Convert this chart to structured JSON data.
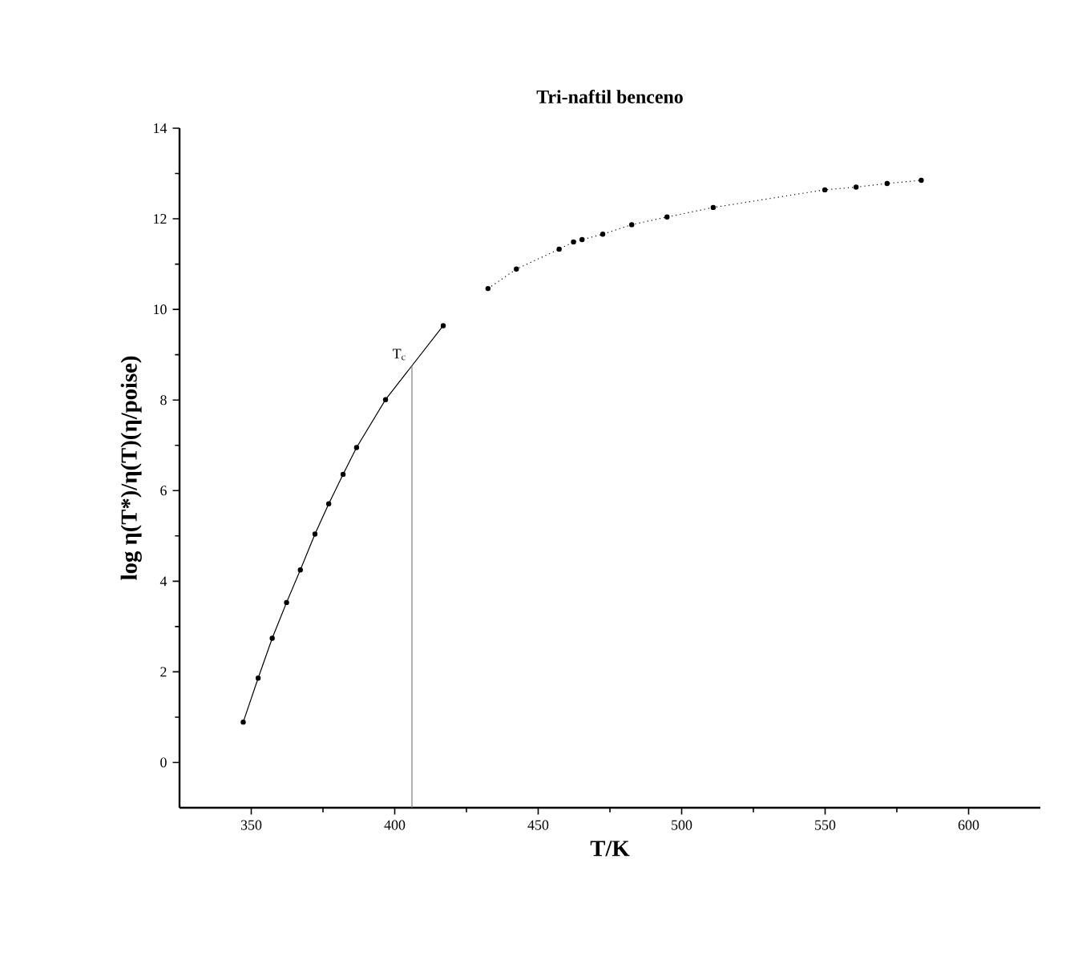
{
  "chart_data": {
    "type": "line",
    "title": "Tri-naftil benceno",
    "xlabel": "T/K",
    "ylabel": "log η(T*)/η(T)(η/poise)",
    "xlim": [
      325,
      625
    ],
    "xticks": [
      350,
      400,
      450,
      500,
      550,
      600
    ],
    "ylim": [
      -1,
      14
    ],
    "yticks": [
      0,
      2,
      4,
      6,
      8,
      10,
      12,
      14
    ],
    "marker": "circle",
    "grid": false,
    "series": [
      {
        "line_style": "solid",
        "color": "#000000",
        "x": [
          347.2,
          352.4,
          357.3,
          362.3,
          367.1,
          372.2,
          377.0,
          382.0,
          386.7,
          396.8,
          416.9
        ],
        "values": [
          0.89,
          1.86,
          2.74,
          3.53,
          4.25,
          5.04,
          5.71,
          6.36,
          6.95,
          8.01,
          9.64
        ]
      },
      {
        "line_style": "dotted",
        "color": "#000000",
        "x": [
          432.5,
          442.4,
          457.3,
          462.3,
          465.3,
          472.5,
          482.6,
          494.9,
          511.0,
          549.9,
          560.8,
          571.6,
          583.5
        ],
        "values": [
          10.46,
          10.89,
          11.33,
          11.49,
          11.54,
          11.66,
          11.87,
          12.04,
          12.25,
          12.64,
          12.7,
          12.78,
          12.85
        ]
      }
    ],
    "ref_lines": [
      {
        "axis": "x",
        "value": 406,
        "label": "T$_{c}$",
        "color": "#808080"
      }
    ]
  }
}
